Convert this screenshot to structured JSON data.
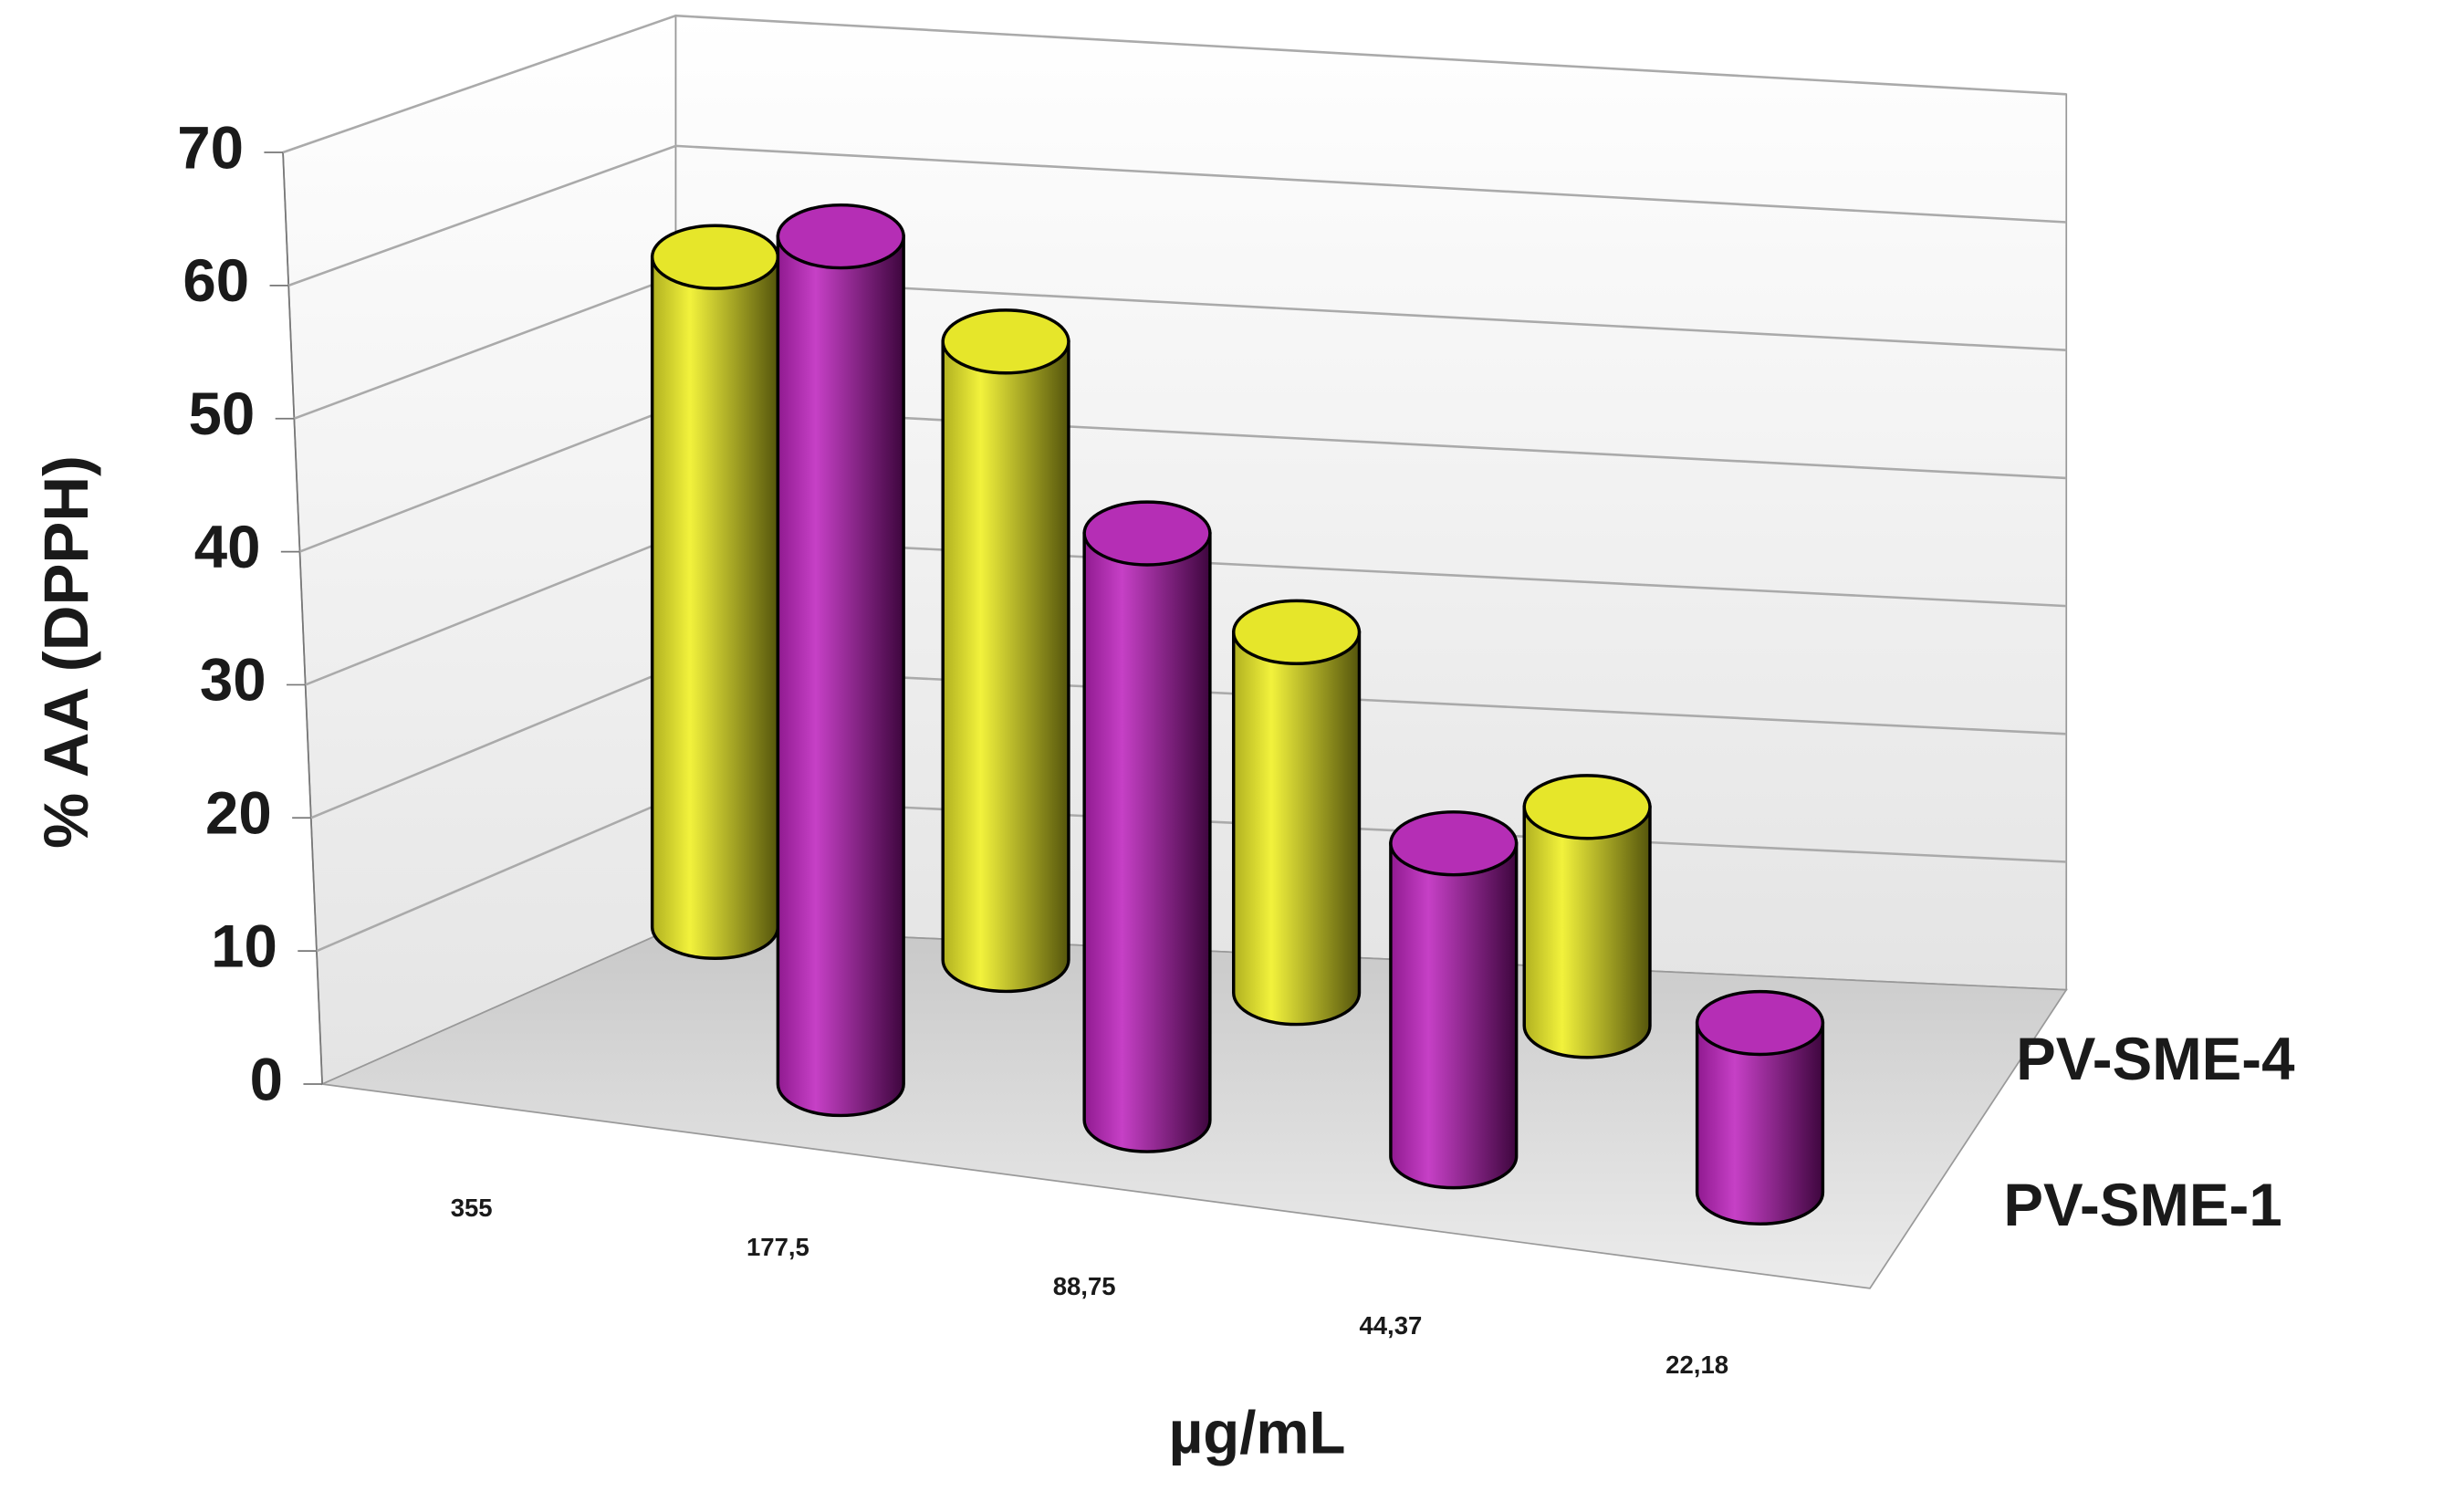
{
  "chart_data": {
    "type": "bar3d",
    "y_label": "% AA (DPPH)",
    "x_label": "µg/mL",
    "categories": [
      "355",
      "177,5",
      "88,75",
      "44,37",
      "22,18"
    ],
    "series": [
      {
        "name": "PV-SME-4",
        "color": "#e6e62a",
        "values": [
          52,
          48,
          28,
          17,
          null
        ]
      },
      {
        "name": "PV-SME-1",
        "color": "#b52eb5",
        "values": [
          65,
          45,
          24,
          13,
          null
        ]
      }
    ],
    "ylim": [
      0,
      70
    ],
    "yticks": [
      0,
      10,
      20,
      30,
      40,
      50,
      60,
      70
    ],
    "grid": true
  }
}
